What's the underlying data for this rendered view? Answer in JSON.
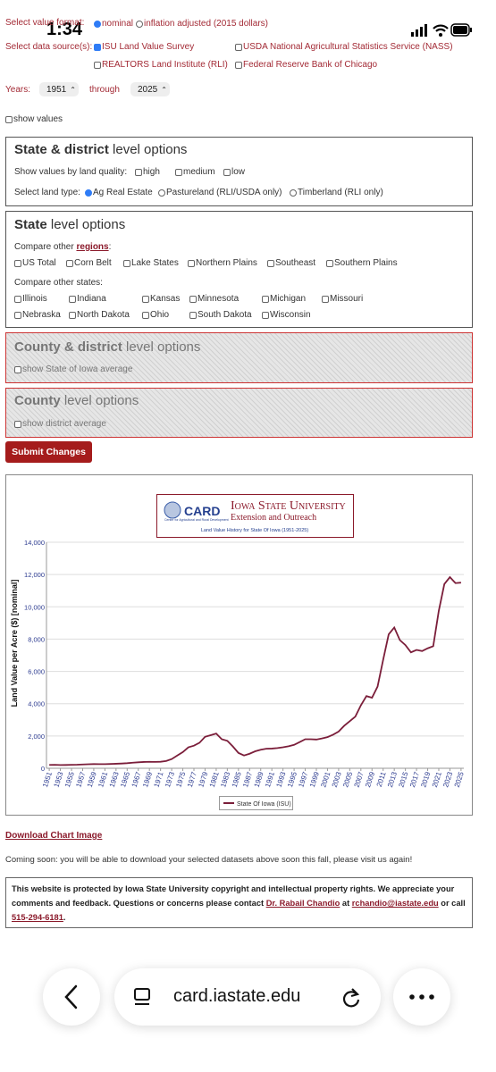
{
  "status_bar": {
    "time": "1:34"
  },
  "value_format": {
    "label": "Select value format:",
    "options": [
      "nominal",
      "inflation adjusted (2015 dollars)"
    ]
  },
  "data_sources": {
    "label": "Select data source(s):",
    "options": [
      "ISU Land Value Survey",
      "USDA National Agricultural Statistics Service (NASS)",
      "REALTORS Land Institute (RLI)",
      "Federal Reserve Bank of Chicago"
    ]
  },
  "years": {
    "label": "Years:",
    "from": "1951",
    "through_label": "through",
    "to": "2025"
  },
  "show_values": "show values",
  "state_district": {
    "title_bold": "State & district",
    "title_rest": " level options",
    "quality_label": "Show values by land quality:",
    "quality": [
      "high",
      "medium",
      "low"
    ],
    "land_type_label": "Select land type:",
    "land_types": [
      "Ag Real Estate",
      "Pastureland (RLI/USDA only)",
      "Timberland (RLI only)"
    ]
  },
  "state": {
    "title_bold": "State",
    "title_rest": " level options",
    "regions_label": "Compare other ",
    "regions_link": "regions",
    "regions_colon": ":",
    "regions": [
      "US Total",
      "Corn Belt",
      "Lake States",
      "Northern Plains",
      "Southeast",
      "Southern Plains"
    ],
    "states_label": "Compare other states:",
    "states": [
      "Illinois",
      "Indiana",
      "Kansas",
      "Minnesota",
      "Michigan",
      "Missouri",
      "Nebraska",
      "North Dakota",
      "Ohio",
      "South Dakota",
      "Wisconsin"
    ]
  },
  "county_district": {
    "title_bold": "County & district",
    "title_rest": " level options",
    "option": "show State of Iowa average"
  },
  "county": {
    "title_bold": "County",
    "title_rest": " level options",
    "option": "show district average"
  },
  "submit": "Submit Changes",
  "chart": {
    "type": "line",
    "logo": {
      "card": "CARD",
      "card_sub": "Center for Agricultural and Rural Development",
      "university": "Iowa State University",
      "extension": "Extension and Outreach"
    },
    "title": "Land Value History for State Of Iowa (1951-2025)",
    "y_label": "Land Value per Acre ($) [nominal]",
    "x": [
      1951,
      1952,
      1953,
      1954,
      1955,
      1956,
      1957,
      1958,
      1959,
      1960,
      1961,
      1962,
      1963,
      1964,
      1965,
      1966,
      1967,
      1968,
      1969,
      1970,
      1971,
      1972,
      1973,
      1974,
      1975,
      1976,
      1977,
      1978,
      1979,
      1980,
      1981,
      1982,
      1983,
      1984,
      1985,
      1986,
      1987,
      1988,
      1989,
      1990,
      1991,
      1992,
      1993,
      1994,
      1995,
      1996,
      1997,
      1998,
      1999,
      2000,
      2001,
      2002,
      2003,
      2004,
      2005,
      2006,
      2007,
      2008,
      2009,
      2010,
      2011,
      2012,
      2013,
      2014,
      2015,
      2016,
      2017,
      2018,
      2019,
      2020,
      2021,
      2022,
      2023,
      2024,
      2025
    ],
    "series": [
      {
        "name": "State Of Iowa (ISU)",
        "color": "#7b1e3a",
        "values": [
          208,
          215,
          200,
          205,
          215,
          220,
          235,
          250,
          260,
          255,
          255,
          265,
          280,
          295,
          315,
          345,
          370,
          390,
          400,
          395,
          405,
          450,
          570,
          790,
          1000,
          1300,
          1400,
          1580,
          1950,
          2050,
          2150,
          1800,
          1700,
          1350,
          950,
          790,
          900,
          1050,
          1150,
          1210,
          1220,
          1250,
          1300,
          1360,
          1450,
          1620,
          1800,
          1800,
          1780,
          1850,
          1930,
          2080,
          2275,
          2630,
          2915,
          3200,
          3900,
          4470,
          4370,
          5060,
          6710,
          8300,
          8720,
          7940,
          7630,
          7180,
          7330,
          7260,
          7430,
          7560,
          9750,
          11410,
          11840,
          11470,
          11500
        ]
      }
    ],
    "xlim": [
      1950.5,
      2025.5
    ],
    "xticks": [
      1951,
      1953,
      1955,
      1957,
      1959,
      1961,
      1963,
      1965,
      1967,
      1969,
      1971,
      1973,
      1975,
      1977,
      1979,
      1981,
      1983,
      1985,
      1987,
      1989,
      1991,
      1993,
      1995,
      1997,
      1999,
      2001,
      2003,
      2005,
      2007,
      2009,
      2011,
      2013,
      2015,
      2017,
      2019,
      2021,
      2023,
      2025
    ],
    "ylim": [
      0,
      14000
    ],
    "yticks": [
      0,
      {
        "value": 2000,
        "label": "2,000"
      },
      {
        "value": 4000,
        "label": "4,000"
      },
      {
        "value": 6000,
        "label": "6,000"
      },
      {
        "value": 8000,
        "label": "8,000"
      },
      {
        "value": 10000,
        "label": "10,000"
      },
      {
        "value": 12000,
        "label": "12,000"
      },
      {
        "value": 14000,
        "label": "14,000"
      }
    ],
    "grid": true
  },
  "download": "Download Chart Image",
  "coming_soon": "Coming soon: you will be able to download your selected datasets above soon this fall, please visit us again!",
  "notice": {
    "text_1": "This website is protected by Iowa State University copyright and intellectual property rights. We appreciate your comments and feedback. Questions or concerns please contact ",
    "contact_name": "Dr. Rabail Chandio",
    "text_2": " at ",
    "email": "rchandio@iastate.edu",
    "text_3": " or call ",
    "phone": "515-294-6181",
    "text_4": "."
  },
  "browser": {
    "url": "card.iastate.edu"
  }
}
